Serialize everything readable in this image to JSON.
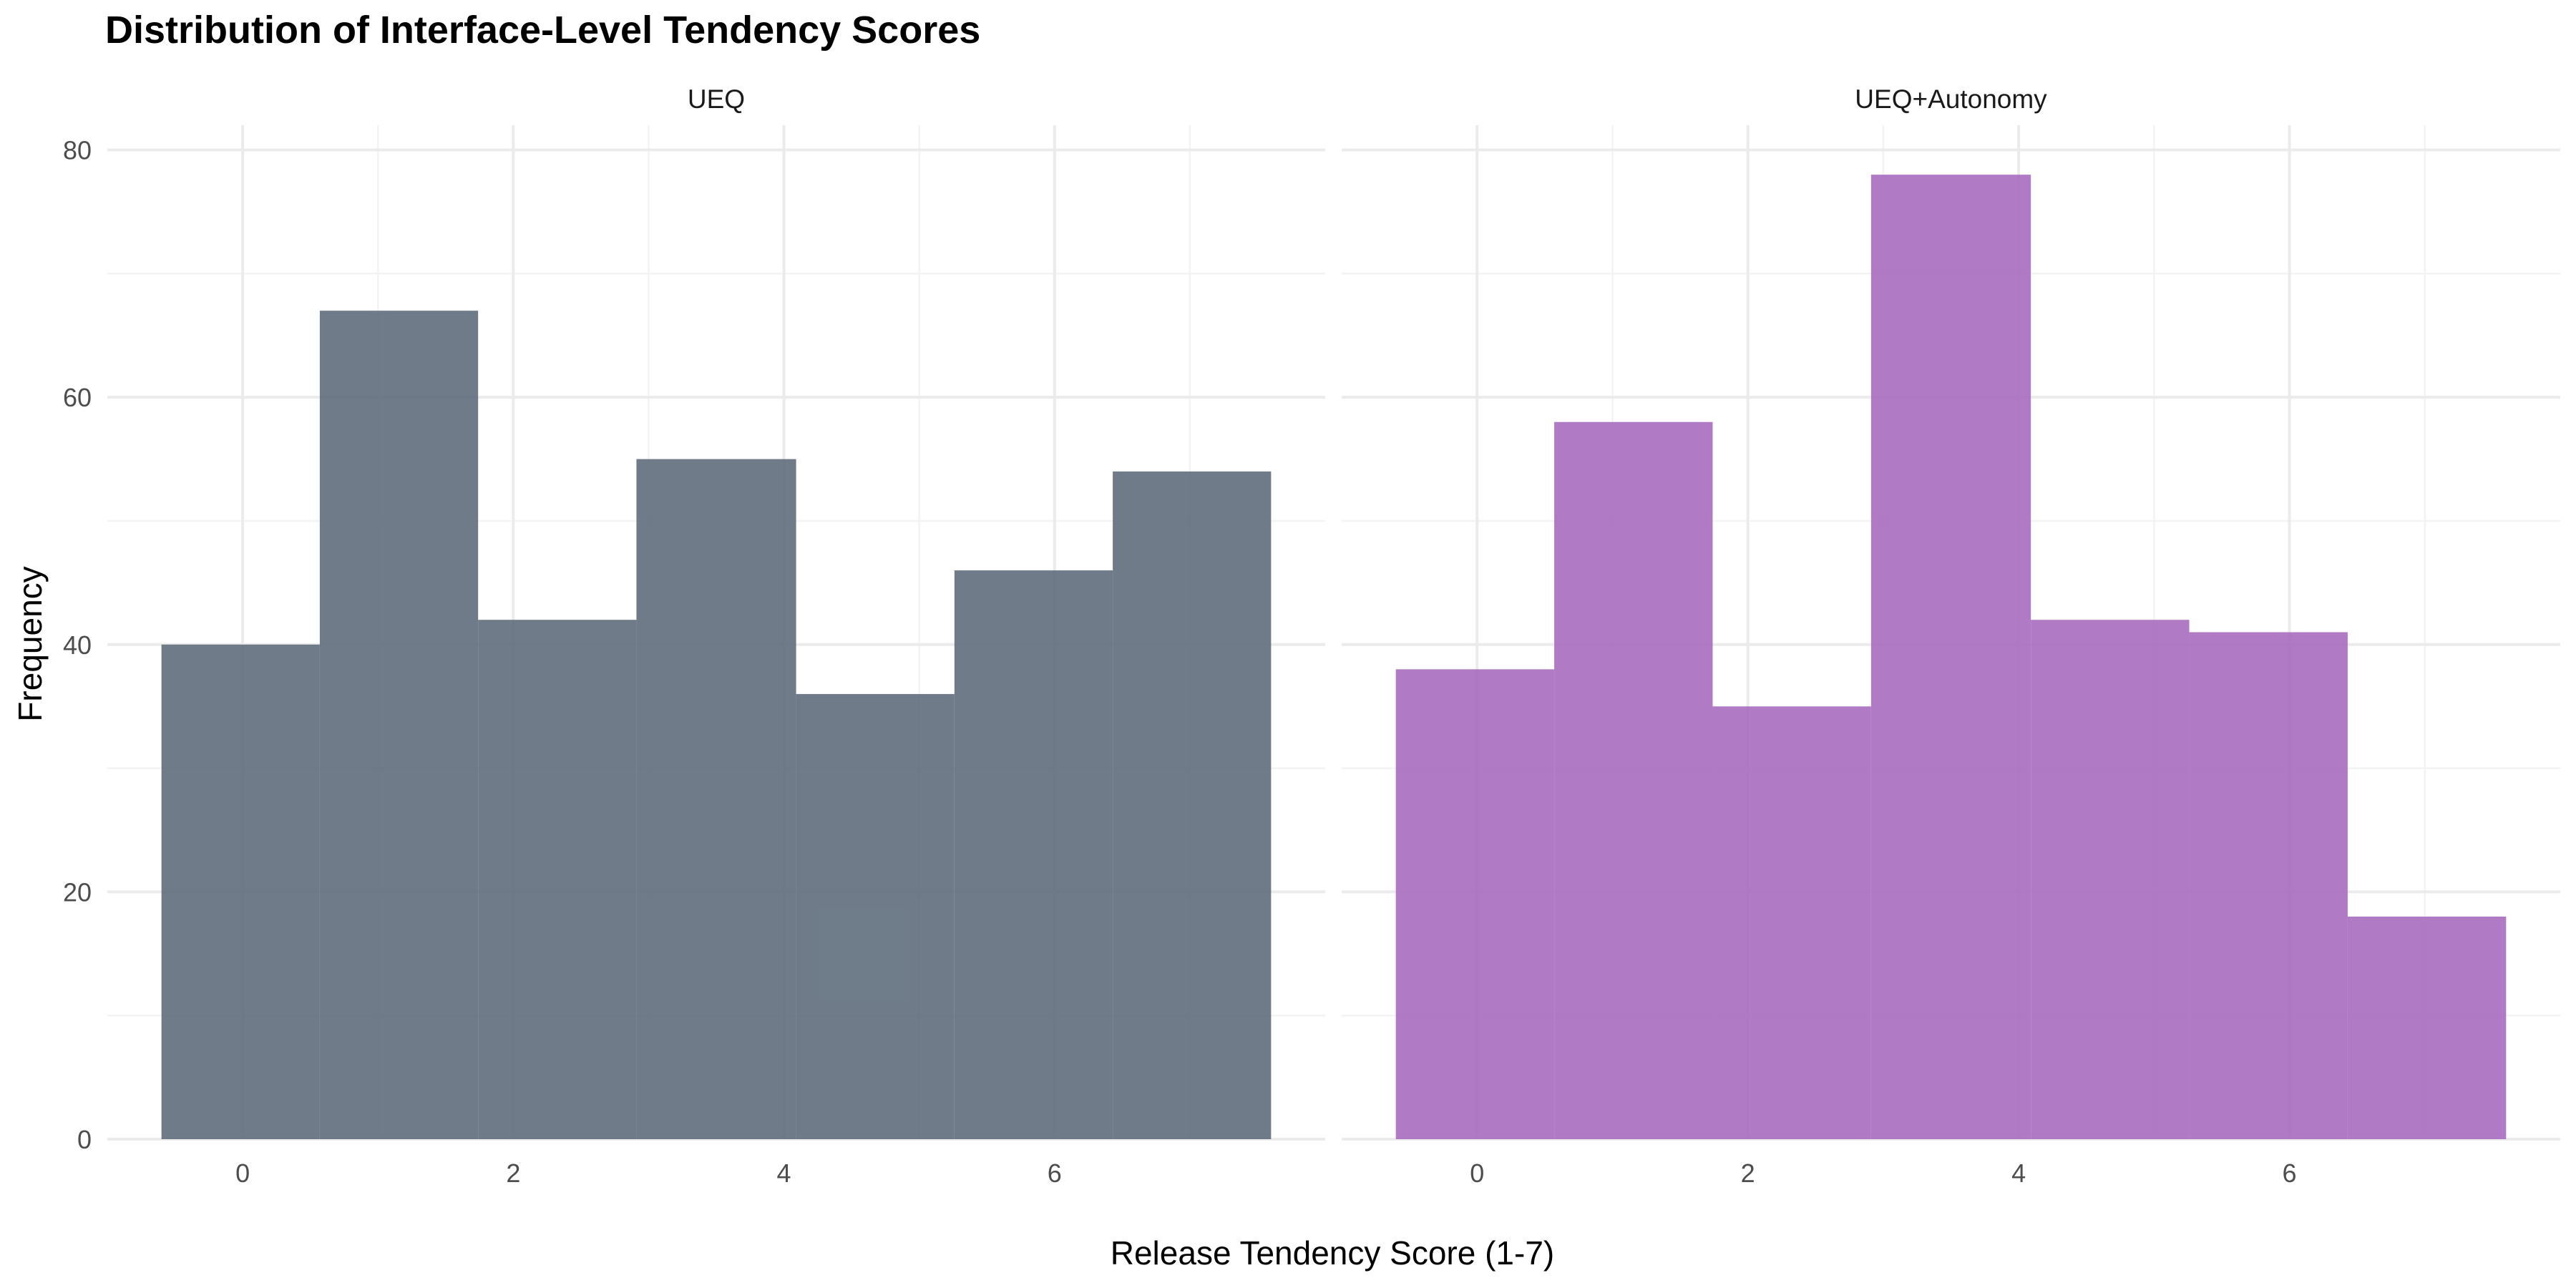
{
  "chart_data": {
    "type": "bar",
    "title": "Distribution of Interface-Level Tendency Scores",
    "xlabel": "Release Tendency Score (1-7)",
    "ylabel": "Frequency",
    "xlim": [
      -1.0,
      8.0
    ],
    "ylim": [
      0,
      82
    ],
    "x_ticks": [
      0,
      2,
      4,
      6
    ],
    "y_ticks": [
      0,
      20,
      40,
      60,
      80
    ],
    "grid": true,
    "panels": [
      {
        "name": "UEQ",
        "color": "#5f6d7c",
        "bins": [
          {
            "x0": -0.6,
            "x1": 0.57,
            "value": 40
          },
          {
            "x0": 0.57,
            "x1": 1.74,
            "value": 67
          },
          {
            "x0": 1.74,
            "x1": 2.91,
            "value": 42
          },
          {
            "x0": 2.91,
            "x1": 4.09,
            "value": 55
          },
          {
            "x0": 4.09,
            "x1": 5.26,
            "value": 36
          },
          {
            "x0": 5.26,
            "x1": 6.43,
            "value": 46
          },
          {
            "x0": 6.43,
            "x1": 7.6,
            "value": 54
          }
        ]
      },
      {
        "name": "UEQ+Autonomy",
        "color": "#a76bbf",
        "bins": [
          {
            "x0": -0.6,
            "x1": 0.57,
            "value": 38
          },
          {
            "x0": 0.57,
            "x1": 1.74,
            "value": 58
          },
          {
            "x0": 1.74,
            "x1": 2.91,
            "value": 35
          },
          {
            "x0": 2.91,
            "x1": 4.09,
            "value": 78
          },
          {
            "x0": 4.09,
            "x1": 5.26,
            "value": 42
          },
          {
            "x0": 5.26,
            "x1": 6.43,
            "value": 41
          },
          {
            "x0": 6.43,
            "x1": 7.6,
            "value": 18
          }
        ]
      }
    ]
  }
}
